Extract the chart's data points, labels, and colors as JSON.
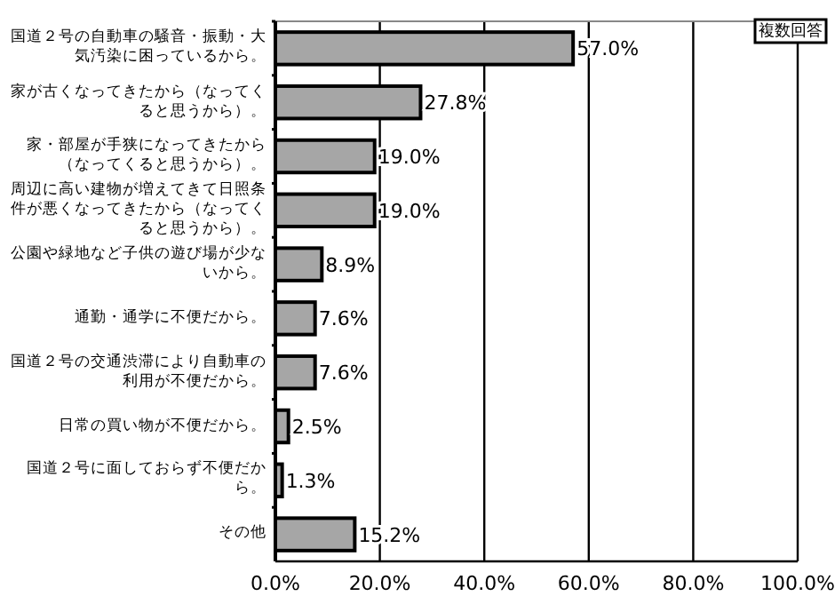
{
  "chart_data": {
    "type": "bar",
    "orientation": "horizontal",
    "categories": [
      "国道２号の自動車の騒音・振動・大気汚染に困っているから。",
      "家が古くなってきたから（なってくると思うから）。",
      "家・部屋が手狭になってきたから（なってくると思うから）。",
      "周辺に高い建物が増えてきて日照条件が悪くなってきたから（なってくると思うから）。",
      "公園や緑地など子供の遊び場が少ないから。",
      "通勤・通学に不便だから。",
      "国道２号の交通渋滞により自動車の利用が不便だから。",
      "日常の買い物が不便だから。",
      "国道２号に面しておらず不便だから。",
      "その他"
    ],
    "values": [
      57.0,
      27.8,
      19.0,
      19.0,
      8.9,
      7.6,
      7.6,
      2.5,
      1.3,
      15.2
    ],
    "value_labels": [
      "57.0%",
      "27.8%",
      "19.0%",
      "19.0%",
      "8.9%",
      "7.6%",
      "7.6%",
      "2.5%",
      "1.3%",
      "15.2%"
    ],
    "color": "#a6a6a6",
    "xlim": [
      0,
      100
    ],
    "xticks": [
      {
        "value": 0,
        "label": "0.0%"
      },
      {
        "value": 20,
        "label": "20.0%"
      },
      {
        "value": 40,
        "label": "40.0%"
      },
      {
        "value": 60,
        "label": "60.0%"
      },
      {
        "value": 80,
        "label": "80.0%"
      },
      {
        "value": 100,
        "label": "100.0%"
      }
    ],
    "grid": "x",
    "annotations": [
      "複数回答"
    ]
  }
}
